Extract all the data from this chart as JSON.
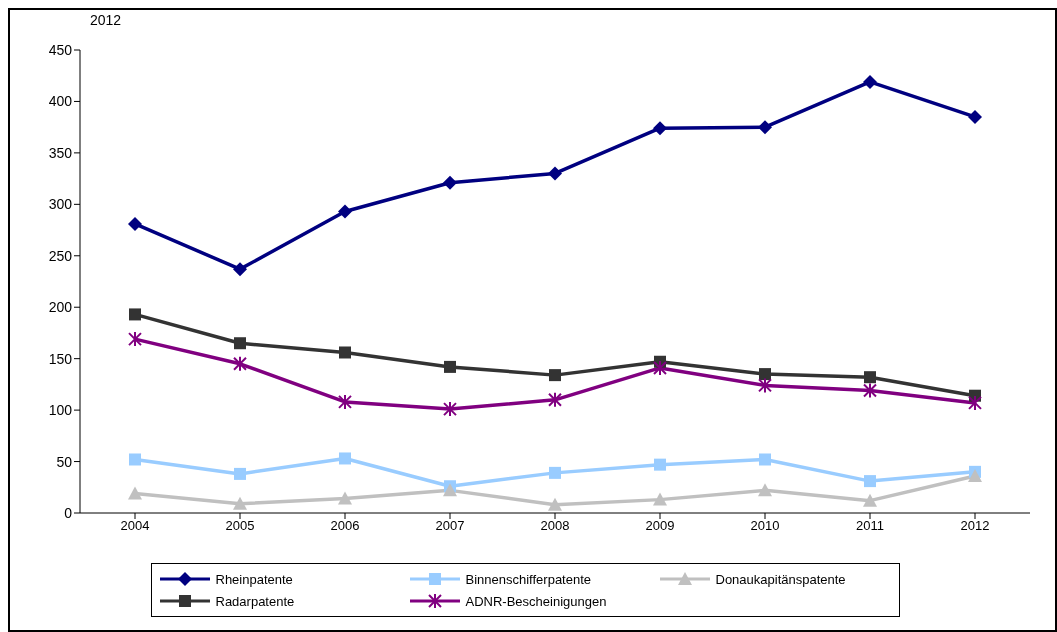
{
  "chart_data": {
    "type": "line",
    "title": "2012",
    "categories": [
      "2004",
      "2005",
      "2006",
      "2007",
      "2008",
      "2009",
      "2010",
      "2011",
      "2012"
    ],
    "series": [
      {
        "name": "Rheinpatente",
        "color": "#000080",
        "marker": "diamond",
        "values": [
          281,
          237,
          293,
          321,
          330,
          374,
          375,
          419,
          385
        ]
      },
      {
        "name": "Binnenschifferpatente",
        "color": "#99ccff",
        "marker": "square",
        "values": [
          52,
          38,
          53,
          26,
          39,
          47,
          52,
          31,
          40
        ]
      },
      {
        "name": "Donaukapitänspatente",
        "color": "#c0c0c0",
        "marker": "triangle",
        "values": [
          19,
          9,
          14,
          22,
          8,
          13,
          22,
          12,
          36
        ]
      },
      {
        "name": "Radarpatente",
        "color": "#333333",
        "marker": "square",
        "values": [
          193,
          165,
          156,
          142,
          134,
          147,
          135,
          132,
          114
        ]
      },
      {
        "name": "ADNR-Bescheinigungen",
        "color": "#800080",
        "marker": "cross",
        "values": [
          169,
          145,
          108,
          101,
          110,
          141,
          124,
          119,
          107
        ]
      }
    ],
    "ylim": [
      0,
      450
    ],
    "yticks": [
      0,
      50,
      100,
      150,
      200,
      250,
      300,
      350,
      400,
      450
    ],
    "grid": false,
    "legend": "bottom",
    "line_style": "solid"
  }
}
